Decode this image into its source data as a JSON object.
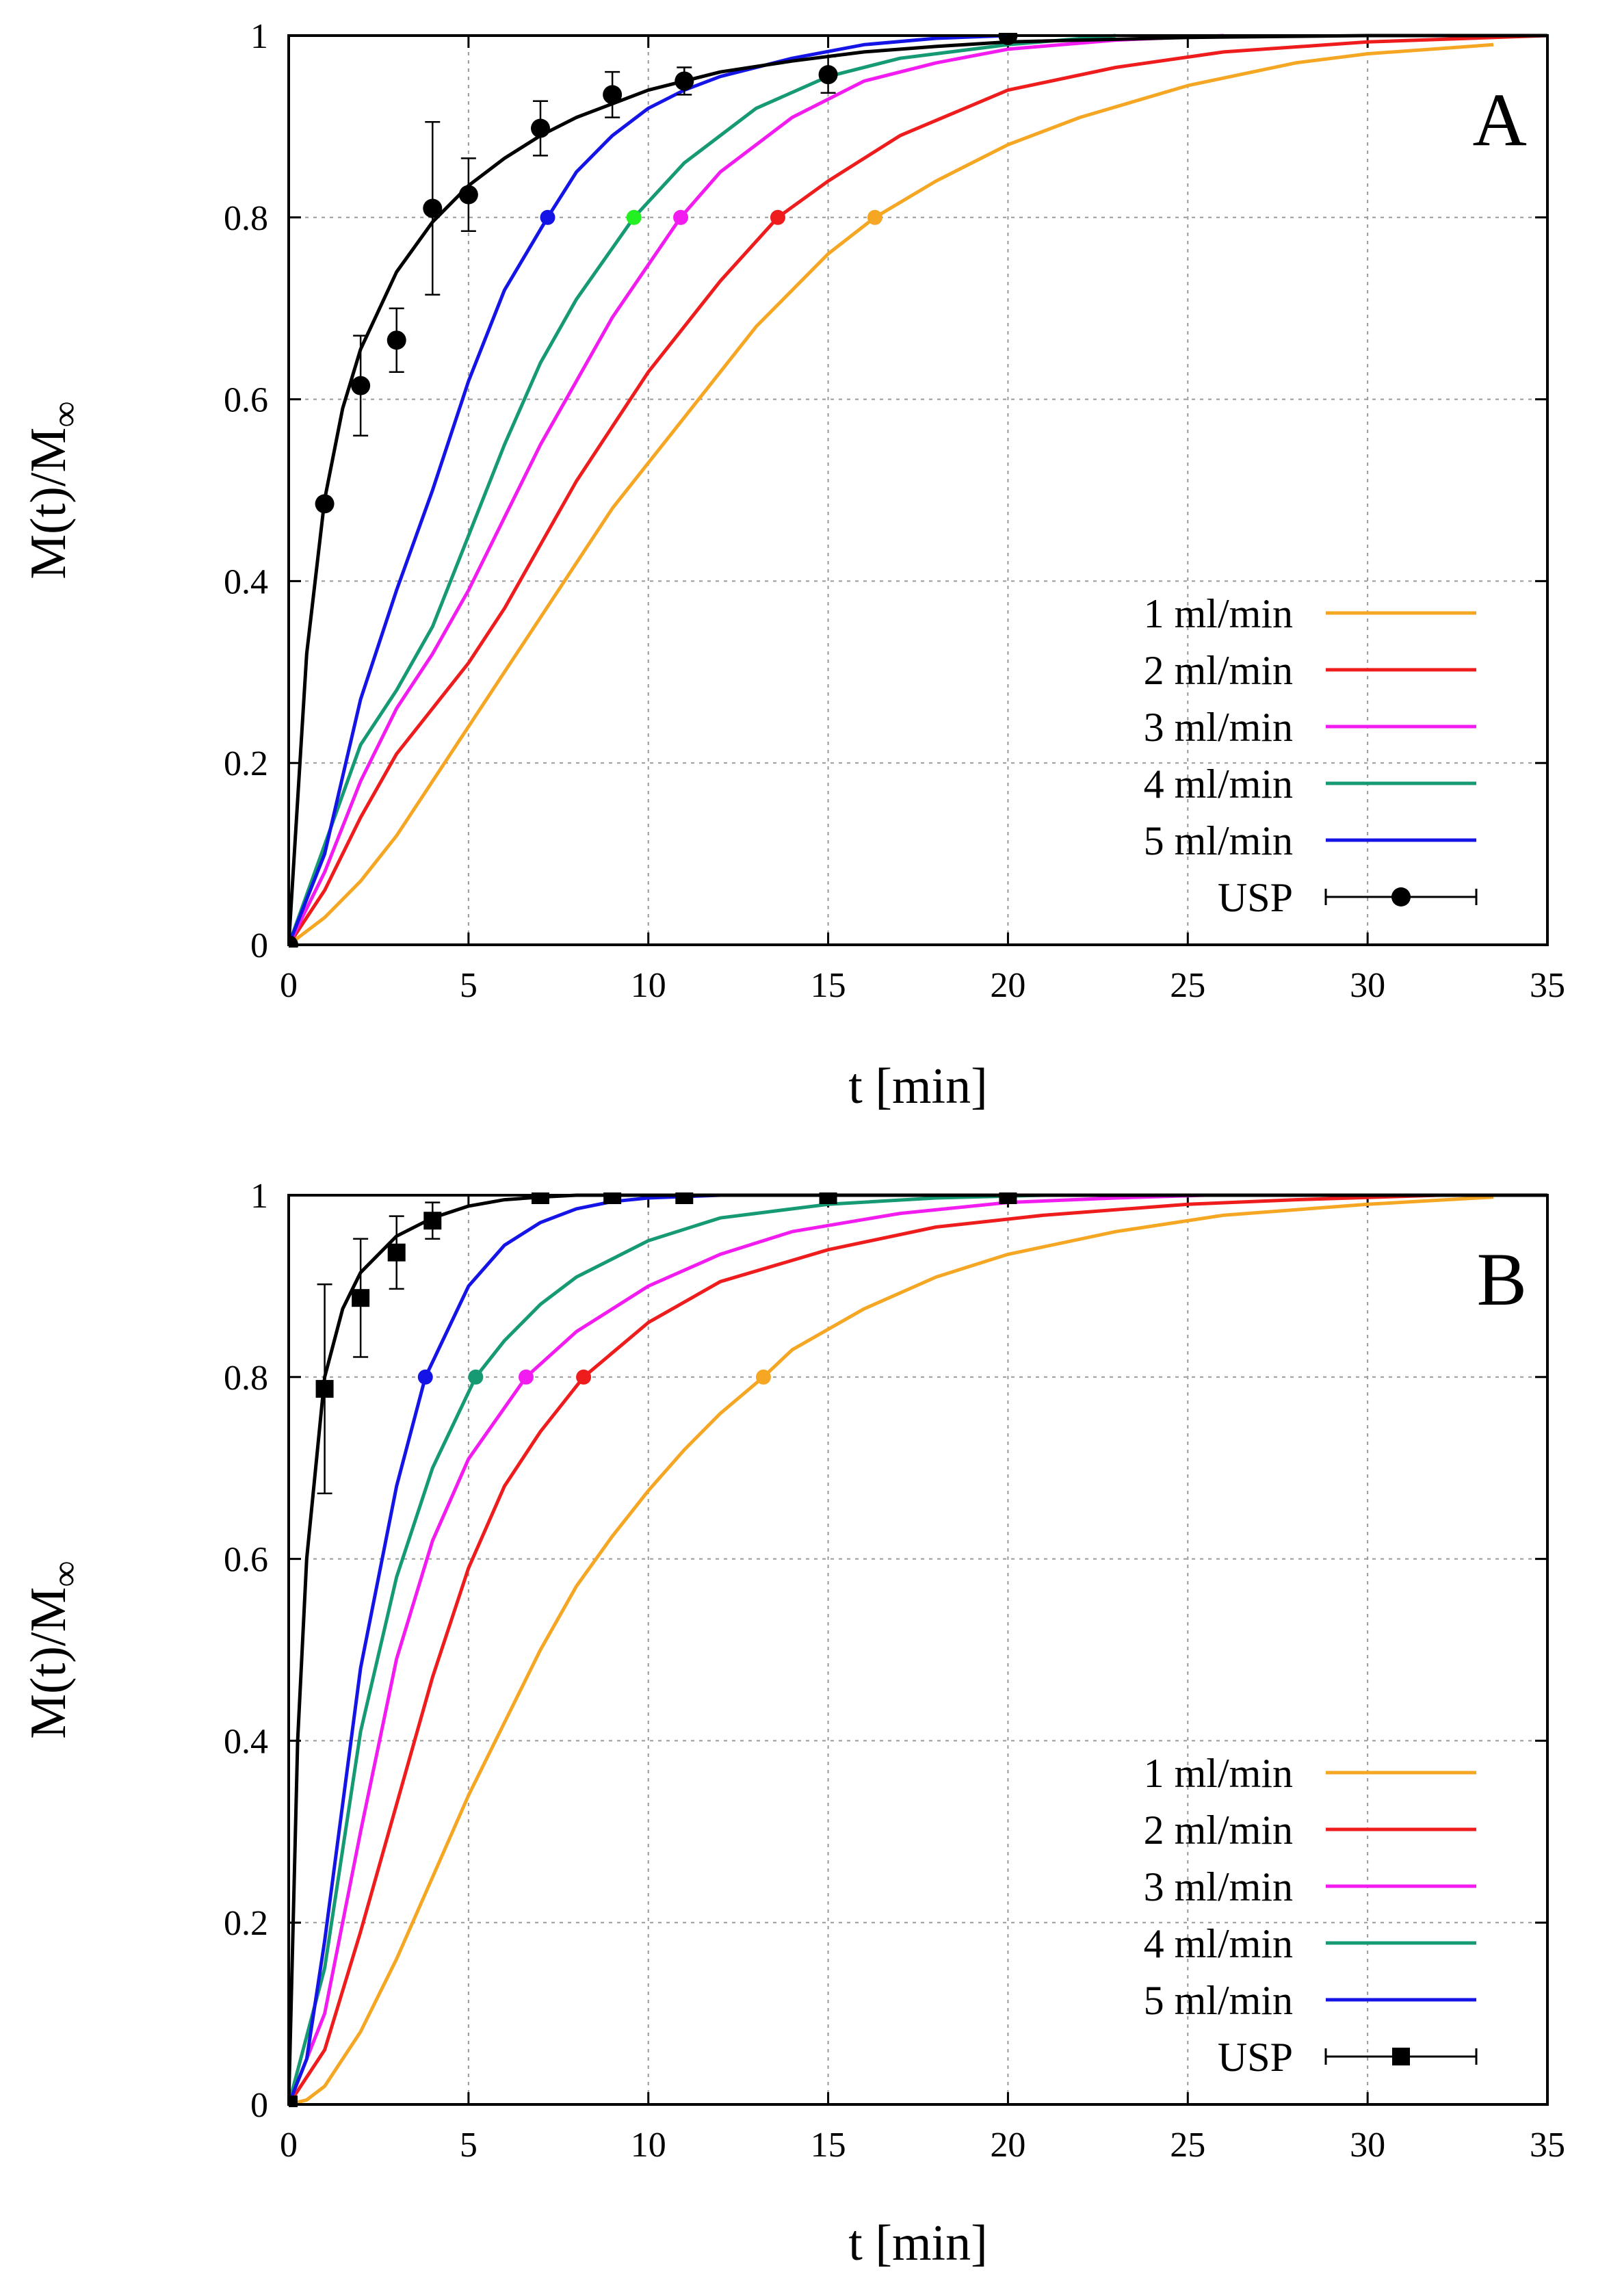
{
  "chart_data": [
    {
      "type": "line",
      "panel_label": "A",
      "xlabel": "t [min]",
      "ylabel": "M(t)/M",
      "ylabel_sub": "∞",
      "xlim": [
        0,
        35
      ],
      "ylim": [
        0,
        1
      ],
      "xticks": [
        0,
        5,
        10,
        15,
        20,
        25,
        30,
        35
      ],
      "yticks": [
        0,
        0.2,
        0.4,
        0.6,
        0.8,
        1
      ],
      "ytick_labels": [
        "0",
        "0.2",
        "0.4",
        "0.6",
        "0.8",
        "1"
      ],
      "grid": true,
      "legend_position": "bottom-right",
      "series": [
        {
          "name": "1 ml/min",
          "color": "#f5a623",
          "marker_color": "#f5a623",
          "marker": {
            "x": 16.3,
            "y": 0.8
          },
          "x": [
            0,
            1,
            2,
            3,
            4,
            5,
            6,
            7,
            8,
            9,
            10,
            11,
            12,
            13,
            14,
            15,
            16.3,
            18,
            20,
            22,
            25,
            28,
            30,
            33.5
          ],
          "y": [
            0,
            0.03,
            0.07,
            0.12,
            0.18,
            0.24,
            0.3,
            0.36,
            0.42,
            0.48,
            0.53,
            0.58,
            0.63,
            0.68,
            0.72,
            0.76,
            0.8,
            0.84,
            0.88,
            0.91,
            0.945,
            0.97,
            0.98,
            0.99
          ]
        },
        {
          "name": "2 ml/min",
          "color": "#ee1c1c",
          "marker_color": "#ee1c1c",
          "marker": {
            "x": 13.6,
            "y": 0.8
          },
          "x": [
            0,
            1,
            2,
            3,
            4,
            5,
            6,
            7,
            8,
            9,
            10,
            11,
            12,
            13.6,
            15,
            17,
            20,
            23,
            26,
            30,
            35
          ],
          "y": [
            0,
            0.06,
            0.14,
            0.21,
            0.26,
            0.31,
            0.37,
            0.44,
            0.51,
            0.57,
            0.63,
            0.68,
            0.73,
            0.8,
            0.84,
            0.89,
            0.94,
            0.965,
            0.982,
            0.993,
            1.0
          ]
        },
        {
          "name": "3 ml/min",
          "color": "#f21cf0",
          "marker_color": "#f21cf0",
          "marker": {
            "x": 10.9,
            "y": 0.8
          },
          "x": [
            0,
            1,
            2,
            3,
            4,
            5,
            6,
            7,
            8,
            9,
            10.9,
            12,
            14,
            16,
            18,
            20,
            23,
            26
          ],
          "y": [
            0,
            0.08,
            0.18,
            0.26,
            0.32,
            0.39,
            0.47,
            0.55,
            0.62,
            0.69,
            0.8,
            0.85,
            0.91,
            0.95,
            0.97,
            0.985,
            0.995,
            1.0
          ]
        },
        {
          "name": "4 ml/min",
          "color": "#159a74",
          "marker_color": "#22f022",
          "marker": {
            "x": 9.6,
            "y": 0.8
          },
          "x": [
            0,
            1,
            2,
            3,
            4,
            5,
            6,
            7,
            8,
            9.6,
            11,
            13,
            15,
            17,
            20,
            23
          ],
          "y": [
            0,
            0.11,
            0.22,
            0.28,
            0.35,
            0.45,
            0.55,
            0.64,
            0.71,
            0.8,
            0.86,
            0.92,
            0.955,
            0.975,
            0.99,
            1.0
          ]
        },
        {
          "name": "5 ml/min",
          "color": "#1414e6",
          "marker_color": "#1414e6",
          "marker": {
            "x": 7.2,
            "y": 0.8
          },
          "x": [
            0,
            1,
            2,
            3,
            4,
            5,
            6,
            7.2,
            8,
            9,
            10,
            11,
            12,
            14,
            16,
            18,
            20
          ],
          "y": [
            0,
            0.1,
            0.27,
            0.39,
            0.5,
            0.62,
            0.72,
            0.8,
            0.85,
            0.89,
            0.92,
            0.94,
            0.955,
            0.975,
            0.99,
            0.997,
            1.0
          ]
        }
      ],
      "usp": {
        "name": "USP",
        "marker": "circle",
        "points": [
          {
            "x": 0,
            "y": 0.0,
            "err": 0
          },
          {
            "x": 1,
            "y": 0.485,
            "err": 0
          },
          {
            "x": 2,
            "y": 0.615,
            "err": 0.055
          },
          {
            "x": 3,
            "y": 0.665,
            "err": 0.035
          },
          {
            "x": 4,
            "y": 0.81,
            "err": 0.095
          },
          {
            "x": 5,
            "y": 0.825,
            "err": 0.04
          },
          {
            "x": 7,
            "y": 0.898,
            "err": 0.03
          },
          {
            "x": 9,
            "y": 0.935,
            "err": 0.025
          },
          {
            "x": 11,
            "y": 0.95,
            "err": 0.015
          },
          {
            "x": 15,
            "y": 0.957,
            "err": 0.02
          },
          {
            "x": 20,
            "y": 1.0,
            "err": 0
          }
        ],
        "fit": {
          "x": [
            0,
            0.5,
            1,
            1.5,
            2,
            3,
            4,
            5,
            6,
            7,
            8,
            9,
            10,
            12,
            14,
            16,
            18,
            20,
            25,
            30,
            35
          ],
          "y": [
            0,
            0.32,
            0.49,
            0.59,
            0.655,
            0.74,
            0.795,
            0.835,
            0.865,
            0.89,
            0.91,
            0.925,
            0.94,
            0.96,
            0.972,
            0.982,
            0.988,
            0.993,
            0.998,
            1.0,
            1.0
          ]
        }
      }
    },
    {
      "type": "line",
      "panel_label": "B",
      "xlabel": "t [min]",
      "ylabel": "M(t)/M",
      "ylabel_sub": "∞",
      "xlim": [
        0,
        35
      ],
      "ylim": [
        0,
        1
      ],
      "xticks": [
        0,
        5,
        10,
        15,
        20,
        25,
        30,
        35
      ],
      "yticks": [
        0,
        0.2,
        0.4,
        0.6,
        0.8,
        1
      ],
      "ytick_labels": [
        "0",
        "0.2",
        "0.4",
        "0.6",
        "0.8",
        "1"
      ],
      "grid": true,
      "legend_position": "bottom-right",
      "series": [
        {
          "name": "1 ml/min",
          "color": "#f5a623",
          "marker_color": "#f5a623",
          "marker": {
            "x": 13.2,
            "y": 0.8
          },
          "x": [
            0,
            0.5,
            1,
            2,
            3,
            4,
            5,
            6,
            7,
            8,
            9,
            10,
            11,
            12,
            13.2,
            14,
            16,
            18,
            20,
            23,
            26,
            30,
            33.5
          ],
          "y": [
            0,
            0.005,
            0.02,
            0.08,
            0.16,
            0.25,
            0.34,
            0.42,
            0.5,
            0.57,
            0.625,
            0.675,
            0.72,
            0.76,
            0.8,
            0.83,
            0.875,
            0.91,
            0.935,
            0.96,
            0.978,
            0.99,
            0.998
          ]
        },
        {
          "name": "2 ml/min",
          "color": "#ee1c1c",
          "marker_color": "#ee1c1c",
          "marker": {
            "x": 8.2,
            "y": 0.8
          },
          "x": [
            0,
            1,
            2,
            3,
            4,
            5,
            6,
            7,
            8.2,
            10,
            12,
            15,
            18,
            21,
            25,
            28,
            32
          ],
          "y": [
            0,
            0.06,
            0.19,
            0.33,
            0.47,
            0.59,
            0.68,
            0.74,
            0.8,
            0.86,
            0.905,
            0.94,
            0.965,
            0.978,
            0.99,
            0.995,
            1.0
          ]
        },
        {
          "name": "3 ml/min",
          "color": "#f21cf0",
          "marker_color": "#f21cf0",
          "marker": {
            "x": 6.6,
            "y": 0.8
          },
          "x": [
            0,
            1,
            2,
            3,
            4,
            5,
            6.6,
            8,
            10,
            12,
            14,
            17,
            20,
            23,
            25.5
          ],
          "y": [
            0,
            0.1,
            0.3,
            0.49,
            0.62,
            0.71,
            0.8,
            0.85,
            0.9,
            0.935,
            0.96,
            0.98,
            0.992,
            0.997,
            1.0
          ]
        },
        {
          "name": "4 ml/min",
          "color": "#159a74",
          "marker_color": "#159a74",
          "marker": {
            "x": 5.2,
            "y": 0.8
          },
          "x": [
            0,
            1,
            2,
            3,
            4,
            5.2,
            6,
            7,
            8,
            10,
            12,
            15,
            18,
            21
          ],
          "y": [
            0,
            0.15,
            0.41,
            0.58,
            0.7,
            0.8,
            0.84,
            0.88,
            0.91,
            0.95,
            0.975,
            0.99,
            0.997,
            1.0
          ]
        },
        {
          "name": "5 ml/min",
          "color": "#1414e6",
          "marker_color": "#1414e6",
          "marker": {
            "x": 3.8,
            "y": 0.8
          },
          "x": [
            0,
            0.5,
            1,
            2,
            3,
            3.8,
            5,
            6,
            7,
            8,
            9,
            10,
            12,
            14
          ],
          "y": [
            0,
            0.05,
            0.18,
            0.48,
            0.68,
            0.8,
            0.9,
            0.945,
            0.97,
            0.985,
            0.993,
            0.997,
            1.0,
            1.0
          ]
        }
      ],
      "usp": {
        "name": "USP",
        "marker": "square",
        "points": [
          {
            "x": 0,
            "y": 0.0,
            "err": 0
          },
          {
            "x": 1,
            "y": 0.787,
            "err": 0.115
          },
          {
            "x": 2,
            "y": 0.887,
            "err": 0.065
          },
          {
            "x": 3,
            "y": 0.937,
            "err": 0.04
          },
          {
            "x": 4,
            "y": 0.972,
            "err": 0.02
          },
          {
            "x": 7,
            "y": 1.0,
            "err": 0
          },
          {
            "x": 9,
            "y": 1.0,
            "err": 0
          },
          {
            "x": 11,
            "y": 1.0,
            "err": 0
          },
          {
            "x": 15,
            "y": 1.0,
            "err": 0
          },
          {
            "x": 20,
            "y": 1.0,
            "err": 0
          }
        ],
        "fit": {
          "x": [
            0,
            0.25,
            0.5,
            1,
            1.5,
            2,
            3,
            4,
            5,
            6,
            7,
            8,
            10,
            15,
            20,
            25,
            30,
            35
          ],
          "y": [
            0,
            0.4,
            0.6,
            0.8,
            0.875,
            0.915,
            0.955,
            0.975,
            0.988,
            0.995,
            0.998,
            1.0,
            1.0,
            1.0,
            1.0,
            1.0,
            1.0,
            1.0
          ]
        }
      }
    }
  ]
}
